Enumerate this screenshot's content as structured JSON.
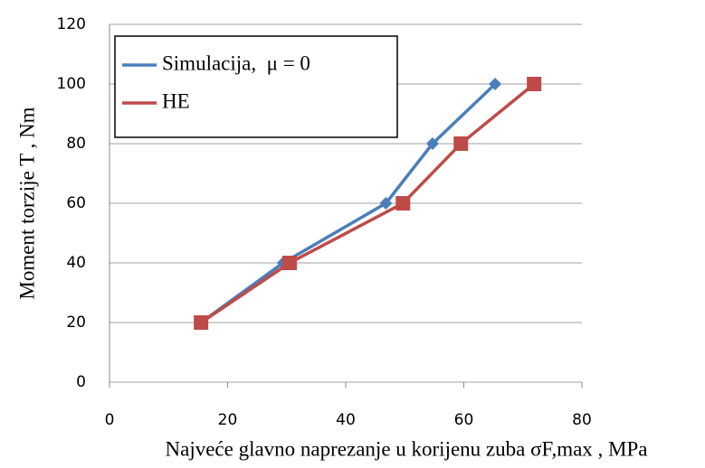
{
  "chart_data": {
    "type": "line",
    "xlabel": "Najveće glavno naprezanje u korijenu zuba σF,max , MPa",
    "ylabel": "Moment torzije T , Nm",
    "series": [
      {
        "name": "Simulacija,  μ = 0",
        "color": "#4a7ebb",
        "marker": "diamond",
        "x": [
          15.5,
          29.4,
          46.8,
          54.7,
          65.3
        ],
        "values": [
          20,
          40,
          60,
          80,
          100
        ]
      },
      {
        "name": "HE",
        "color": "#be4b48",
        "marker": "square",
        "x": [
          15.5,
          30.5,
          49.7,
          59.5,
          71.9
        ],
        "values": [
          20,
          40,
          60,
          80,
          100
        ]
      }
    ],
    "xlim": [
      0,
      80
    ],
    "xticks": [
      0,
      20,
      40,
      60,
      80
    ],
    "ylim": [
      0,
      120
    ],
    "yticks": [
      0,
      20,
      40,
      60,
      80,
      100,
      120
    ],
    "grid": true,
    "legend": "upper left"
  }
}
